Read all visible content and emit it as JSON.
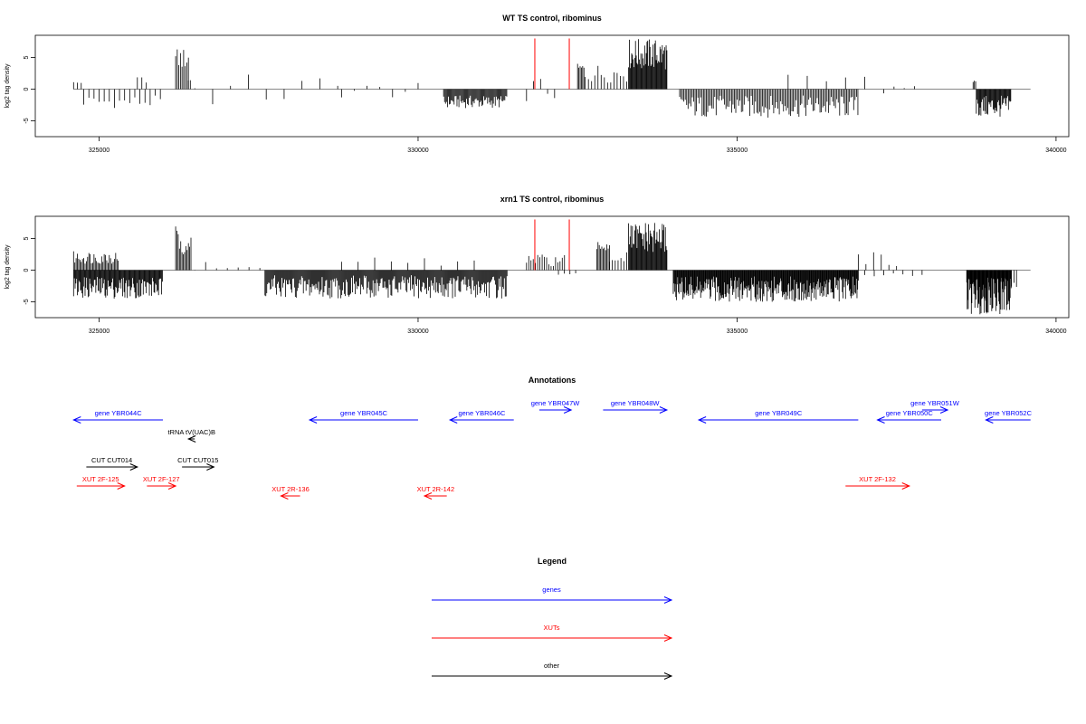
{
  "chart_data": [
    {
      "type": "bar",
      "title": "WT TS control, ribominus",
      "ylabel": "log2 tag density",
      "xlabel": "",
      "xlim": [
        324000,
        340200
      ],
      "ylim": [
        -7.5,
        8.5
      ],
      "x_ticks": [
        325000,
        330000,
        335000,
        340000
      ],
      "x_tick_labels": [
        "325000",
        "330000",
        "335000",
        "340000"
      ],
      "y_ticks": [
        -5,
        0,
        5
      ],
      "y_tick_labels": [
        "-5",
        "0",
        "5"
      ],
      "baseline": {
        "from": 324600,
        "to": 339600,
        "color": "#888888"
      },
      "highlight_lines": {
        "color": "#ff0000",
        "x": [
          331830,
          332370
        ],
        "y_top": 8
      },
      "segments": [
        {
          "from": 324600,
          "to": 324750,
          "step": 60,
          "lo": 0.8,
          "hi": 1.2
        },
        {
          "from": 324760,
          "to": 326000,
          "step": 80,
          "lo": -3,
          "hi": -1
        },
        {
          "from": 325600,
          "to": 325800,
          "step": 70,
          "lo": 1,
          "hi": 2
        },
        {
          "from": 326200,
          "to": 326400,
          "step": 25,
          "lo": 3,
          "hi": 6.5
        },
        {
          "from": 326400,
          "to": 326450,
          "step": 30,
          "lo": 1,
          "hi": 2
        },
        {
          "from": 326500,
          "to": 328800,
          "step": 280,
          "lo": -3,
          "hi": 2.5
        },
        {
          "from": 328800,
          "to": 330000,
          "step": 200,
          "lo": -1.5,
          "hi": 1
        },
        {
          "from": 330400,
          "to": 331400,
          "step": 15,
          "lo": -3,
          "hi": -1
        },
        {
          "from": 331700,
          "to": 332200,
          "step": 110,
          "lo": -2,
          "hi": 2
        },
        {
          "from": 332500,
          "to": 332600,
          "step": 20,
          "lo": 2.5,
          "hi": 4
        },
        {
          "from": 332620,
          "to": 333300,
          "step": 50,
          "lo": 1,
          "hi": 4
        },
        {
          "from": 333300,
          "to": 333900,
          "step": 12,
          "lo": 3,
          "hi": 8
        },
        {
          "from": 334100,
          "to": 336900,
          "step": 22,
          "lo": -4.5,
          "hi": -1
        },
        {
          "from": 335800,
          "to": 337000,
          "step": 300,
          "lo": 1,
          "hi": 3.5
        },
        {
          "from": 337300,
          "to": 337800,
          "step": 160,
          "lo": -1,
          "hi": 0.5
        },
        {
          "from": 338700,
          "to": 338750,
          "step": 20,
          "lo": 1,
          "hi": 1.5
        },
        {
          "from": 338750,
          "to": 339300,
          "step": 12,
          "lo": -4.5,
          "hi": -1
        }
      ]
    },
    {
      "type": "bar",
      "title": "xrn1 TS control, ribominus",
      "ylabel": "log2 tag density",
      "xlabel": "",
      "xlim": [
        324000,
        340200
      ],
      "ylim": [
        -7.5,
        8.5
      ],
      "x_ticks": [
        325000,
        330000,
        335000,
        340000
      ],
      "x_tick_labels": [
        "325000",
        "330000",
        "335000",
        "340000"
      ],
      "y_ticks": [
        -5,
        0,
        5
      ],
      "y_tick_labels": [
        "-5",
        "0",
        "5"
      ],
      "baseline": {
        "from": 324600,
        "to": 339600,
        "color": "#888888"
      },
      "highlight_lines": {
        "color": "#ff0000",
        "x": [
          331830,
          332370
        ],
        "y_top": 8
      },
      "segments": [
        {
          "from": 324600,
          "to": 325300,
          "step": 20,
          "lo": 1,
          "hi": 3
        },
        {
          "from": 324600,
          "to": 326000,
          "step": 12,
          "lo": -4.5,
          "hi": -1
        },
        {
          "from": 326200,
          "to": 326450,
          "step": 20,
          "lo": 2.5,
          "hi": 7
        },
        {
          "from": 326500,
          "to": 327600,
          "step": 170,
          "lo": -1.5,
          "hi": 1.5
        },
        {
          "from": 327600,
          "to": 331400,
          "step": 14,
          "lo": -4.5,
          "hi": -0.8
        },
        {
          "from": 328800,
          "to": 331000,
          "step": 260,
          "lo": 0.5,
          "hi": 2
        },
        {
          "from": 331700,
          "to": 332300,
          "step": 35,
          "lo": 0.5,
          "hi": 2.5
        },
        {
          "from": 332200,
          "to": 332500,
          "step": 90,
          "lo": -1,
          "hi": -0.5
        },
        {
          "from": 332800,
          "to": 333000,
          "step": 20,
          "lo": 3,
          "hi": 4.5
        },
        {
          "from": 333000,
          "to": 333300,
          "step": 45,
          "lo": 1,
          "hi": 3
        },
        {
          "from": 333300,
          "to": 333900,
          "step": 12,
          "lo": 2.5,
          "hi": 7.5
        },
        {
          "from": 334000,
          "to": 336900,
          "step": 10,
          "lo": -5,
          "hi": -1
        },
        {
          "from": 336900,
          "to": 337600,
          "step": 120,
          "lo": 0.5,
          "hi": 3
        },
        {
          "from": 337000,
          "to": 338000,
          "step": 150,
          "lo": -1,
          "hi": -0.5
        },
        {
          "from": 338600,
          "to": 339300,
          "step": 8,
          "lo": -7,
          "hi": -1
        },
        {
          "from": 339300,
          "to": 339400,
          "step": 40,
          "lo": -3,
          "hi": -2
        }
      ]
    }
  ],
  "annotations": {
    "title": "Annotations",
    "features": [
      {
        "label": "gene YBR044C",
        "color": "#0000ff",
        "from": 324600,
        "to": 326000,
        "dir": "left",
        "row": 2
      },
      {
        "label": "gene YBR045C",
        "color": "#0000ff",
        "from": 328300,
        "to": 330000,
        "dir": "left",
        "row": 2
      },
      {
        "label": "gene YBR046C",
        "color": "#0000ff",
        "from": 330500,
        "to": 331500,
        "dir": "left",
        "row": 2
      },
      {
        "label": "gene YBR047W",
        "color": "#0000ff",
        "from": 331900,
        "to": 332400,
        "dir": "right",
        "row": 1
      },
      {
        "label": "gene YBR048W",
        "color": "#0000ff",
        "from": 332900,
        "to": 333900,
        "dir": "right",
        "row": 1
      },
      {
        "label": "gene YBR049C",
        "color": "#0000ff",
        "from": 334400,
        "to": 336900,
        "dir": "left",
        "row": 2
      },
      {
        "label": "gene YBR050C",
        "color": "#0000ff",
        "from": 337200,
        "to": 338200,
        "dir": "left",
        "row": 2
      },
      {
        "label": "gene YBR051W",
        "color": "#0000ff",
        "from": 337900,
        "to": 338300,
        "dir": "right",
        "row": 0
      },
      {
        "label": "gene YBR052C",
        "color": "#0000ff",
        "from": 338900,
        "to": 339600,
        "dir": "left",
        "row": 2
      },
      {
        "label": "tRNA tV(UAC)B",
        "color": "#000000",
        "from": 326400,
        "to": 326500,
        "dir": "left",
        "row": 3
      },
      {
        "label": "CUT CUT014",
        "color": "#000000",
        "from": 324800,
        "to": 325600,
        "dir": "right",
        "row": 4
      },
      {
        "label": "CUT CUT015",
        "color": "#000000",
        "from": 326300,
        "to": 326800,
        "dir": "right",
        "row": 4
      },
      {
        "label": "XUT 2F-125",
        "color": "#ff0000",
        "from": 324650,
        "to": 325400,
        "dir": "right",
        "row": 5
      },
      {
        "label": "XUT 2F-127",
        "color": "#ff0000",
        "from": 325750,
        "to": 326200,
        "dir": "right",
        "row": 5
      },
      {
        "label": "XUT 2R-136",
        "color": "#ff0000",
        "from": 327850,
        "to": 328150,
        "dir": "left",
        "row": 6
      },
      {
        "label": "XUT 2R-142",
        "color": "#ff0000",
        "from": 330100,
        "to": 330450,
        "dir": "left",
        "row": 6
      },
      {
        "label": "XUT 2F-132",
        "color": "#ff0000",
        "from": 336700,
        "to": 337700,
        "dir": "right",
        "row": 5
      }
    ]
  },
  "legend": {
    "title": "Legend",
    "items": [
      {
        "label": "genes",
        "color": "#0000ff"
      },
      {
        "label": "XUTs",
        "color": "#ff0000"
      },
      {
        "label": "other",
        "color": "#000000"
      }
    ]
  }
}
